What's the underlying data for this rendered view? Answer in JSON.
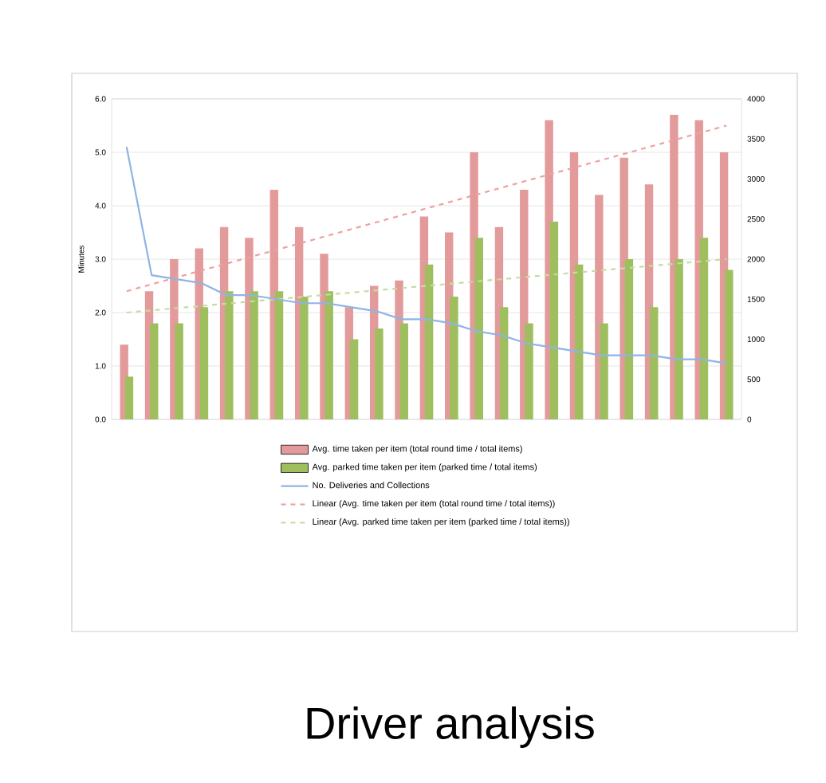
{
  "chart_data": {
    "type": "bar",
    "title": "Driver analysis",
    "ylabel": "Minutes",
    "categories": [
      null,
      null,
      null,
      null,
      null,
      null,
      null,
      null,
      null,
      null,
      null,
      null,
      null,
      null,
      null,
      null,
      null,
      null,
      null,
      null,
      null,
      null,
      null,
      null,
      null
    ],
    "ylim": [
      0,
      6
    ],
    "yticks": [
      {
        "value": 0,
        "label": "0.0"
      },
      {
        "value": 1,
        "label": "1.0"
      },
      {
        "value": 2,
        "label": "2.0"
      },
      {
        "value": 3,
        "label": "3.0"
      },
      {
        "value": 4,
        "label": "4.0"
      },
      {
        "value": 5,
        "label": "5.0"
      },
      {
        "value": 6,
        "label": "6.0"
      }
    ],
    "y2lim": [
      0,
      4000
    ],
    "y2ticks": [
      0,
      500,
      1000,
      1500,
      2000,
      2500,
      3000,
      3500,
      4000
    ],
    "grid": "y",
    "legend": "bottom",
    "series": [
      {
        "name": "Avg. time taken per item (total round time / total items)",
        "type": "bar",
        "color": "#e39a9a",
        "values": [
          1.4,
          2.4,
          3.0,
          3.2,
          3.6,
          3.4,
          4.3,
          3.6,
          3.1,
          2.1,
          2.5,
          2.6,
          3.8,
          3.5,
          5.0,
          3.6,
          4.3,
          5.6,
          5.0,
          4.2,
          4.9,
          4.4,
          5.7,
          5.6,
          5.0
        ]
      },
      {
        "name": "Avg. parked time taken per item (parked time / total items)",
        "type": "bar",
        "color": "#9fbf5f",
        "values": [
          0.8,
          1.8,
          1.8,
          2.1,
          2.4,
          2.4,
          2.4,
          2.3,
          2.4,
          1.5,
          1.7,
          1.8,
          2.9,
          2.3,
          3.4,
          2.1,
          1.8,
          3.7,
          2.9,
          1.8,
          3.0,
          2.1,
          3.0,
          3.4,
          2.8
        ]
      },
      {
        "name": "No. Deliveries and Collections",
        "type": "line",
        "axis": "y2",
        "color": "#8fb4e3",
        "values": [
          3400,
          1800,
          1750,
          1700,
          1550,
          1550,
          1500,
          1450,
          1450,
          1400,
          1350,
          1250,
          1250,
          1200,
          1100,
          1050,
          950,
          900,
          850,
          800,
          800,
          800,
          750,
          750,
          700
        ]
      },
      {
        "name": "Linear (Avg. time taken per item (total round time / total items))",
        "type": "line",
        "color": "#eea0a0",
        "line_style": "dashed",
        "values": [
          2.4,
          null,
          null,
          null,
          null,
          null,
          null,
          null,
          null,
          null,
          null,
          null,
          null,
          null,
          null,
          null,
          null,
          null,
          null,
          null,
          null,
          null,
          null,
          null,
          5.5
        ]
      },
      {
        "name": "Linear (Avg. parked time taken per item (parked time / total items))",
        "type": "line",
        "color": "#c5dca0",
        "line_style": "dashed",
        "values": [
          2.0,
          null,
          null,
          null,
          null,
          null,
          null,
          null,
          null,
          null,
          null,
          null,
          null,
          null,
          null,
          null,
          null,
          null,
          null,
          null,
          null,
          null,
          null,
          null,
          3.0
        ]
      }
    ]
  }
}
